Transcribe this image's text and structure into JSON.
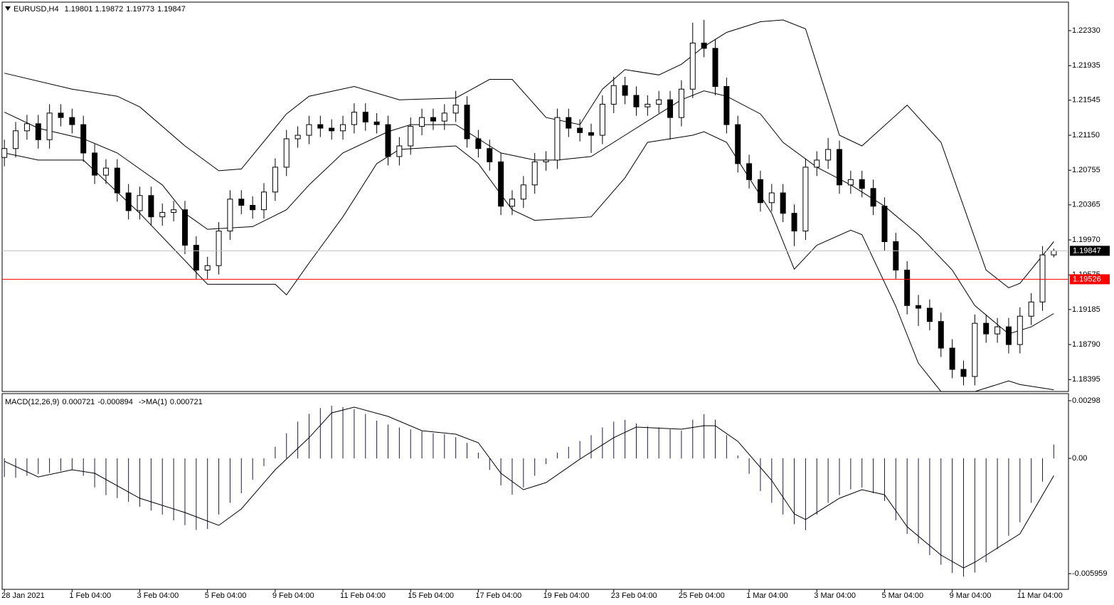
{
  "chart_data": [
    {
      "type": "candlestick",
      "title": "EURUSD,H4",
      "xlim": [
        -0.2,
        94.3
      ],
      "xticks": [
        {
          "value": 0,
          "label": "28 Jan 2021"
        },
        {
          "value": 6,
          "label": "1 Feb 04:00"
        },
        {
          "value": 12,
          "label": "3 Feb 04:00"
        },
        {
          "value": 18,
          "label": "5 Feb 04:00"
        },
        {
          "value": 24,
          "label": "9 Feb 04:00"
        },
        {
          "value": 30,
          "label": "11 Feb 04:00"
        },
        {
          "value": 36,
          "label": "15 Feb 04:00"
        },
        {
          "value": 42,
          "label": "17 Feb 04:00"
        },
        {
          "value": 48,
          "label": "19 Feb 04:00"
        },
        {
          "value": 54,
          "label": "23 Feb 04:00"
        },
        {
          "value": 60,
          "label": "25 Feb 04:00"
        },
        {
          "value": 66,
          "label": "1 Mar 04:00"
        },
        {
          "value": 72,
          "label": "3 Mar 04:00"
        },
        {
          "value": 78,
          "label": "5 Mar 04:00"
        },
        {
          "value": 84,
          "label": "9 Mar 04:00"
        },
        {
          "value": 90,
          "label": "11 Mar 04:00"
        }
      ],
      "ylim": [
        1.18261,
        1.22651
      ],
      "yticks": [
        {
          "value": 1.2233,
          "label": "1.22330"
        },
        {
          "value": 1.21935,
          "label": "1.21935"
        },
        {
          "value": 1.21545,
          "label": "1.21545"
        },
        {
          "value": 1.2115,
          "label": "1.21150"
        },
        {
          "value": 1.20755,
          "label": "1.20755"
        },
        {
          "value": 1.20365,
          "label": "1.20365"
        },
        {
          "value": 1.1997,
          "label": "1.19970"
        },
        {
          "value": 1.19575,
          "label": "1.19575"
        },
        {
          "value": 1.19185,
          "label": "1.19185"
        },
        {
          "value": 1.1879,
          "label": "1.18790"
        },
        {
          "value": 1.18395,
          "label": "1.18395"
        }
      ],
      "up_color": "#ffffff",
      "down_color": "#000000",
      "level": {
        "value": 1.19526,
        "color": "#ff0000"
      },
      "ohlc": [
        [
          1.209,
          1.211,
          1.208,
          1.21
        ],
        [
          1.21,
          1.213,
          1.209,
          1.212
        ],
        [
          1.212,
          1.2138,
          1.211,
          1.2128
        ],
        [
          1.2128,
          1.2138,
          1.21,
          1.211
        ],
        [
          1.211,
          1.215,
          1.21,
          1.214
        ],
        [
          1.214,
          1.215,
          1.2125,
          1.2135
        ],
        [
          1.2135,
          1.2145,
          1.2117,
          1.2127
        ],
        [
          1.2127,
          1.2137,
          1.2085,
          1.2095
        ],
        [
          1.2095,
          1.2105,
          1.206,
          1.207
        ],
        [
          1.207,
          1.2088,
          1.206,
          1.2078
        ],
        [
          1.2078,
          1.2088,
          1.204,
          1.205
        ],
        [
          1.205,
          1.206,
          1.202,
          1.203
        ],
        [
          1.203,
          1.2057,
          1.202,
          1.2047
        ],
        [
          1.2047,
          1.2057,
          1.2013,
          1.2023
        ],
        [
          1.2023,
          1.2038,
          1.2013,
          1.2028
        ],
        [
          1.2028,
          1.2041,
          1.2018,
          1.2031
        ],
        [
          1.2031,
          1.2041,
          1.1981,
          1.1991
        ],
        [
          1.1991,
          1.2001,
          1.1953,
          1.1963
        ],
        [
          1.1963,
          1.1978,
          1.1953,
          1.1968
        ],
        [
          1.1968,
          1.2017,
          1.1958,
          1.2007
        ],
        [
          1.2007,
          1.2053,
          1.1997,
          1.2043
        ],
        [
          1.2043,
          1.2053,
          1.2026,
          1.2036
        ],
        [
          1.2036,
          1.2046,
          1.2021,
          1.2031
        ],
        [
          1.2031,
          1.2061,
          1.2021,
          1.2051
        ],
        [
          1.2051,
          1.2089,
          1.2041,
          1.2079
        ],
        [
          1.2079,
          1.2121,
          1.2069,
          1.2111
        ],
        [
          1.2111,
          1.2125,
          1.2101,
          1.2115
        ],
        [
          1.2115,
          1.2137,
          1.2105,
          1.2127
        ],
        [
          1.2127,
          1.2137,
          1.2113,
          1.2123
        ],
        [
          1.2123,
          1.2133,
          1.211,
          1.212
        ],
        [
          1.212,
          1.2137,
          1.211,
          1.2127
        ],
        [
          1.2127,
          1.2151,
          1.2117,
          1.2141
        ],
        [
          1.2141,
          1.2151,
          1.212,
          1.213
        ],
        [
          1.213,
          1.214,
          1.2117,
          1.2127
        ],
        [
          1.2127,
          1.2137,
          1.2081,
          1.2091
        ],
        [
          1.2091,
          1.2113,
          1.2081,
          1.2103
        ],
        [
          1.2103,
          1.2135,
          1.2093,
          1.2125
        ],
        [
          1.2125,
          1.2145,
          1.2115,
          1.2135
        ],
        [
          1.2135,
          1.2145,
          1.2121,
          1.2131
        ],
        [
          1.2131,
          1.215,
          1.2121,
          1.214
        ],
        [
          1.214,
          1.2165,
          1.213,
          1.2149
        ],
        [
          1.2149,
          1.2159,
          1.2101,
          1.2111
        ],
        [
          1.2111,
          1.2121,
          1.209,
          1.21
        ],
        [
          1.21,
          1.211,
          1.2075,
          1.2085
        ],
        [
          1.2085,
          1.2095,
          1.2025,
          1.2035
        ],
        [
          1.2035,
          1.2053,
          1.2025,
          1.2043
        ],
        [
          1.2043,
          1.2069,
          1.2033,
          1.2059
        ],
        [
          1.2059,
          1.2095,
          1.2049,
          1.2085
        ],
        [
          1.2085,
          1.2097,
          1.2075,
          1.2087
        ],
        [
          1.2087,
          1.2145,
          1.2077,
          1.2135
        ],
        [
          1.2135,
          1.2145,
          1.2113,
          1.2123
        ],
        [
          1.2123,
          1.2133,
          1.2108,
          1.2118
        ],
        [
          1.2118,
          1.2128,
          1.2095,
          1.2115
        ],
        [
          1.2115,
          1.216,
          1.2105,
          1.215
        ],
        [
          1.215,
          1.2181,
          1.214,
          1.2171
        ],
        [
          1.2171,
          1.2181,
          1.215,
          1.216
        ],
        [
          1.216,
          1.217,
          1.2137,
          1.2147
        ],
        [
          1.2147,
          1.216,
          1.2137,
          1.215
        ],
        [
          1.215,
          1.2165,
          1.214,
          1.2155
        ],
        [
          1.2155,
          1.2165,
          1.211,
          1.2135
        ],
        [
          1.2135,
          1.2177,
          1.2125,
          1.2167
        ],
        [
          1.2167,
          1.2242,
          1.2157,
          1.2219
        ],
        [
          1.2219,
          1.2245,
          1.2203,
          1.2213
        ],
        [
          1.2213,
          1.2223,
          1.216,
          1.217
        ],
        [
          1.217,
          1.218,
          1.2117,
          1.2127
        ],
        [
          1.2127,
          1.2137,
          1.2073,
          1.2083
        ],
        [
          1.2083,
          1.2093,
          1.2055,
          1.2065
        ],
        [
          1.2065,
          1.2075,
          1.2029,
          1.2039
        ],
        [
          1.2039,
          1.206,
          1.2029,
          1.205
        ],
        [
          1.205,
          1.206,
          1.2017,
          1.2027
        ],
        [
          1.2027,
          1.2037,
          1.199,
          1.2007
        ],
        [
          1.2007,
          1.2089,
          1.1997,
          1.2079
        ],
        [
          1.2079,
          1.2097,
          1.2069,
          1.2087
        ],
        [
          1.2087,
          1.2112,
          1.2077,
          1.2099
        ],
        [
          1.2099,
          1.2109,
          1.2049,
          1.2059
        ],
        [
          1.2059,
          1.2075,
          1.2049,
          1.2065
        ],
        [
          1.2065,
          1.2075,
          1.2045,
          1.2055
        ],
        [
          1.2055,
          1.2065,
          1.2025,
          1.2035
        ],
        [
          1.2035,
          1.2045,
          1.1985,
          1.1995
        ],
        [
          1.1995,
          1.2005,
          1.1953,
          1.1963
        ],
        [
          1.1963,
          1.1973,
          1.1913,
          1.1923
        ],
        [
          1.1923,
          1.1935,
          1.19,
          1.192
        ],
        [
          1.192,
          1.193,
          1.1895,
          1.1905
        ],
        [
          1.1905,
          1.1915,
          1.1865,
          1.1875
        ],
        [
          1.1875,
          1.1885,
          1.1841,
          1.1851
        ],
        [
          1.1851,
          1.1861,
          1.1833,
          1.1843
        ],
        [
          1.1843,
          1.1913,
          1.1833,
          1.1903
        ],
        [
          1.1903,
          1.1913,
          1.1881,
          1.1891
        ],
        [
          1.1891,
          1.1909,
          1.1881,
          1.1899
        ],
        [
          1.1899,
          1.1909,
          1.1869,
          1.1879
        ],
        [
          1.1879,
          1.1921,
          1.1869,
          1.1911
        ],
        [
          1.1911,
          1.1937,
          1.1901,
          1.1927
        ],
        [
          1.1927,
          1.199,
          1.1917,
          1.19801
        ],
        [
          1.19801,
          1.19872,
          1.19773,
          1.19847
        ]
      ],
      "bands": [
        {
          "color": "#000000",
          "x": [
            0,
            6,
            10,
            12,
            16,
            19,
            21,
            25,
            27,
            31,
            35,
            40,
            43,
            45,
            48,
            51,
            53,
            55,
            58,
            60,
            62,
            64,
            67,
            69,
            71,
            74,
            76,
            80,
            83,
            87,
            89,
            90,
            93
          ],
          "values": [
            1.2185,
            1.2167,
            1.2159,
            1.2147,
            1.2103,
            1.2075,
            1.2077,
            1.2139,
            1.2159,
            1.217,
            1.2155,
            1.2157,
            1.2178,
            1.2178,
            1.2135,
            1.2127,
            1.2167,
            1.2189,
            1.2183,
            1.2195,
            1.2215,
            1.2231,
            1.2243,
            1.2245,
            1.2235,
            1.2115,
            1.2103,
            1.2149,
            1.2107,
            1.1963,
            1.1943,
            1.1948,
            1.1995
          ]
        },
        {
          "color": "#000000",
          "x": [
            0,
            3,
            7,
            10,
            14,
            16,
            18,
            22,
            25,
            27,
            30,
            34,
            36,
            40,
            42,
            44,
            47,
            49,
            52,
            55,
            58,
            60,
            62,
            64,
            67,
            69,
            72,
            75,
            78,
            81,
            84,
            86,
            89,
            91,
            93
          ],
          "values": [
            1.2141,
            1.2123,
            1.2111,
            1.2095,
            1.2059,
            1.2027,
            1.2009,
            1.2012,
            1.2031,
            1.2059,
            1.2095,
            1.2119,
            1.2127,
            1.2127,
            1.2111,
            1.2095,
            1.2087,
            1.2087,
            1.2091,
            1.2115,
            1.2139,
            1.2155,
            1.2165,
            1.2159,
            1.2139,
            1.2107,
            1.2079,
            1.2059,
            1.2035,
            1.2003,
            1.1963,
            1.1923,
            1.1891,
            1.1899,
            1.1914
          ]
        },
        {
          "color": "#000000",
          "x": [
            0,
            3,
            7,
            12,
            15,
            18,
            24,
            25,
            27,
            30,
            33,
            35,
            40,
            42,
            45,
            47,
            52,
            55,
            57,
            58,
            61,
            62,
            64,
            68,
            70,
            72,
            75,
            76,
            79,
            81,
            83,
            86,
            89,
            90,
            93
          ],
          "values": [
            1.2095,
            1.2087,
            1.2087,
            1.2027,
            1.1987,
            1.1947,
            1.1947,
            1.1935,
            1.1971,
            1.2023,
            1.2083,
            1.2099,
            1.2103,
            1.2083,
            1.2031,
            1.2019,
            1.2023,
            1.2067,
            1.2107,
            1.2109,
            1.2115,
            1.2119,
            1.2107,
            1.2027,
            1.1964,
            1.1991,
            1.2008,
            1.2003,
            1.1922,
            1.1858,
            1.1826,
            1.1826,
            1.1838,
            1.1834,
            1.1828
          ]
        }
      ]
    },
    {
      "type": "macd",
      "title": "MACD(12,26,9)",
      "signal_label": "->MA(1)",
      "xlim": [
        -0.2,
        94.3
      ],
      "ylim": [
        -0.006769,
        0.003348
      ],
      "yticks": [
        0.00298,
        {
          "value": 0,
          "label": "0.00"
        },
        -0.005959
      ],
      "series": [
        {
          "color": "#1c1c48",
          "values": [
            -0.00096,
            -0.001,
            -0.0009,
            -0.0008,
            -0.00075,
            -0.00065,
            -0.0006,
            -0.0009,
            -0.0015,
            -0.0019,
            -0.00205,
            -0.00225,
            -0.0025,
            -0.0027,
            -0.0029,
            -0.0032,
            -0.00345,
            -0.0037,
            -0.00365,
            -0.0029,
            -0.0023,
            -0.0018,
            -0.0011,
            -0.0004,
            0.0006,
            0.0013,
            0.0019,
            0.0023,
            0.0026,
            0.00272,
            0.00265,
            0.00255,
            0.0023,
            0.00195,
            0.00175,
            0.0016,
            0.0015,
            0.0014,
            0.0013,
            0.00125,
            0.0011,
            0.0008,
            0.0003,
            -0.0006,
            -0.0014,
            -0.00188,
            -0.0015,
            -0.0009,
            -0.0003,
            0.0003,
            0.0006,
            0.0009,
            0.0012,
            0.0016,
            0.0019,
            0.00199,
            0.0018,
            0.00165,
            0.0016,
            0.0015,
            0.00143,
            0.002,
            0.00228,
            0.002,
            0.0012,
            0.00015,
            -0.0008,
            -0.00169,
            -0.0023,
            -0.0029,
            -0.0034,
            -0.00371,
            -0.0029,
            -0.0023,
            -0.0019,
            -0.0016,
            -0.00151,
            -0.0018,
            -0.0022,
            -0.0032,
            -0.0039,
            -0.0044,
            -0.005,
            -0.0055,
            -0.00592,
            -0.00611,
            -0.0059,
            -0.00537,
            -0.0047,
            -0.004,
            -0.0033,
            -0.0023,
            -0.0012,
            0.000721
          ]
        },
        {
          "color": "#000000",
          "x": [
            0,
            3,
            6,
            8,
            12,
            16,
            19,
            21,
            24,
            27,
            29,
            31,
            34,
            37,
            40,
            42,
            44,
            46,
            48,
            51,
            54,
            56,
            60,
            62,
            63,
            65,
            68,
            70,
            71,
            74,
            76,
            78,
            80,
            83,
            85,
            86,
            90,
            93
          ],
          "values": [
            -0.00015,
            -0.00096,
            -0.00059,
            -0.00077,
            -0.00206,
            -0.0028,
            -0.00346,
            -0.00261,
            -0.00059,
            0.00107,
            0.00235,
            0.00265,
            0.00217,
            0.00143,
            0.00125,
            0.00081,
            -0.00077,
            -0.00162,
            -0.00125,
            -4e-05,
            0.00107,
            0.00162,
            0.00151,
            0.00169,
            0.00169,
            0.00088,
            -0.00114,
            -0.00287,
            -0.00316,
            -0.00206,
            -0.00162,
            -0.00188,
            -0.00353,
            -0.005,
            -0.00566,
            -0.00537,
            -0.0039,
            -0.000894
          ]
        }
      ]
    }
  ]
}
